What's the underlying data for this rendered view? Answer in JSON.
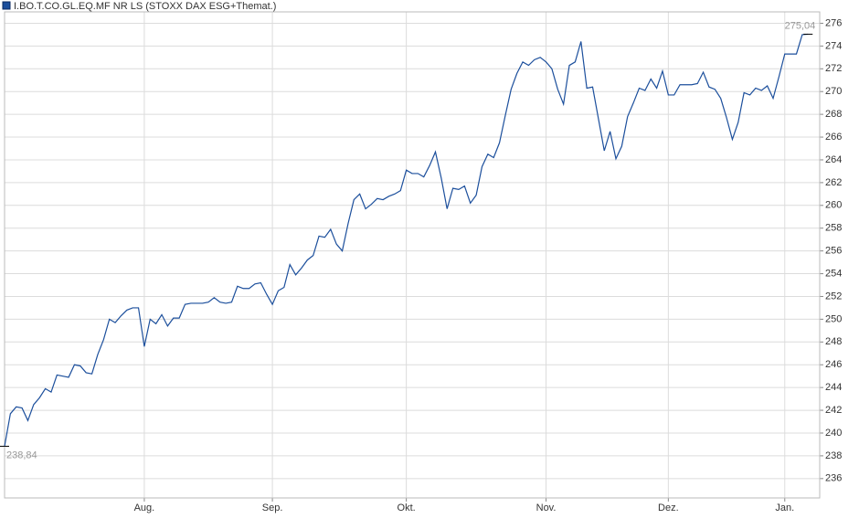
{
  "chart_data": {
    "type": "line",
    "series": [
      {
        "name": "I.BO.T.CO.GL.EQ.MF NR LS (STOXX DAX ESG+Themat.)",
        "color": "#1c4f9c",
        "values": [
          238.84,
          241.7,
          242.3,
          242.2,
          241.1,
          242.5,
          243.1,
          243.9,
          243.6,
          245.1,
          245.0,
          244.9,
          246.0,
          245.9,
          245.3,
          245.2,
          246.9,
          248.2,
          250.0,
          249.7,
          250.3,
          250.8,
          251.0,
          251.0,
          247.6,
          250.0,
          249.6,
          250.4,
          249.4,
          250.1,
          250.1,
          251.3,
          251.4,
          251.4,
          251.4,
          251.5,
          251.9,
          251.5,
          251.4,
          251.5,
          252.9,
          252.7,
          252.7,
          253.1,
          253.2,
          252.2,
          251.3,
          252.5,
          252.8,
          254.8,
          253.9,
          254.5,
          255.2,
          255.6,
          257.3,
          257.2,
          257.9,
          256.6,
          256.0,
          258.4,
          260.5,
          261.0,
          259.7,
          260.1,
          260.6,
          260.5,
          260.8,
          261.0,
          261.3,
          263.1,
          262.8,
          262.8,
          262.5,
          263.5,
          264.7,
          262.4,
          259.7,
          261.5,
          261.4,
          261.7,
          260.2,
          260.9,
          263.4,
          264.5,
          264.2,
          265.5,
          267.9,
          270.2,
          271.6,
          272.6,
          272.3,
          272.8,
          273.0,
          272.6,
          272.0,
          270.2,
          268.9,
          272.3,
          272.6,
          274.4,
          270.3,
          270.4,
          267.6,
          264.8,
          266.5,
          264.1,
          265.2,
          267.8,
          269.0,
          270.3,
          270.1,
          271.1,
          270.3,
          271.8,
          269.7,
          269.7,
          270.6,
          270.6,
          270.6,
          270.7,
          271.7,
          270.4,
          270.2,
          269.4,
          267.7,
          265.8,
          267.3,
          269.9,
          269.7,
          270.3,
          270.1,
          270.5,
          269.4,
          271.3,
          273.3,
          273.3,
          273.3,
          275.0,
          275.04
        ]
      }
    ],
    "start_label": "238,84",
    "end_label": "275,04",
    "xlim": [
      0,
      140
    ],
    "xticks": [
      {
        "value": 24,
        "label": "Aug."
      },
      {
        "value": 46,
        "label": "Sep."
      },
      {
        "value": 69,
        "label": "Okt."
      },
      {
        "value": 93,
        "label": "Nov."
      },
      {
        "value": 114,
        "label": "Dez."
      },
      {
        "value": 134,
        "label": "Jan."
      }
    ],
    "ylim": [
      234.3,
      277.0
    ],
    "yticks": [
      236,
      238,
      240,
      242,
      244,
      246,
      248,
      250,
      252,
      254,
      256,
      258,
      260,
      262,
      264,
      266,
      268,
      270,
      272,
      274,
      276
    ],
    "grid": true
  }
}
